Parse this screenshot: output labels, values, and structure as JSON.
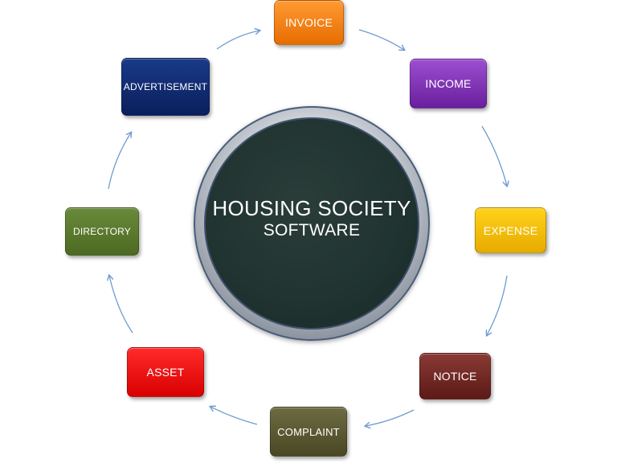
{
  "hub": {
    "title": "HOUSING SOCIETY",
    "subtitle": "SOFTWARE"
  },
  "modules": {
    "invoice": "INVOICE",
    "income": "INCOME",
    "expense": "EXPENSE",
    "notice": "NOTICE",
    "complaint": "COMPLAINT",
    "asset": "ASSET",
    "directory": "DIRECTORY",
    "advertisement": "ADVERTISEMENT"
  },
  "colors": {
    "invoice": "#f7820f",
    "income": "#7e33b8",
    "expense": "#f9c300",
    "notice": "#712824",
    "complaint": "#5b5930",
    "asset": "#f00000",
    "directory": "#5a7a2e",
    "advertisement": "#102a72",
    "hub_fill": "#223532",
    "arrow": "#6f9ccf"
  }
}
